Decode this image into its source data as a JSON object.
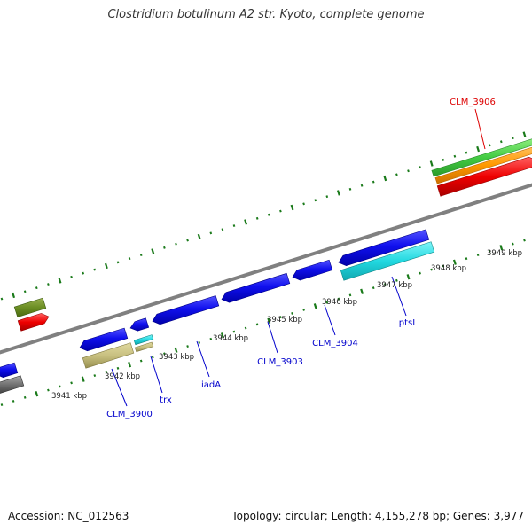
{
  "title": "Clostridium botulinum A2 str. Kyoto, complete genome",
  "footer": {
    "accession": "Accession: NC_012563",
    "summary": "Topology: circular; Length: 4,155,278 bp; Genes: 3,977"
  },
  "colors": {
    "backbone": "#808080",
    "tick": "#1a7a1a",
    "cds": "#0000ee",
    "label_blue": "#0000cc",
    "label_red": "#dd0000",
    "trna": "#00e5ee",
    "other_feature": "#c8c080",
    "gene_red": "#ee0000",
    "gene_green": "#44cc44",
    "gene_orange": "#ff9900",
    "gene_olive": "#6b8e23",
    "gene_gray": "#707070"
  },
  "scale_labels": [
    "3941 kbp",
    "3942 kbp",
    "3943 kbp",
    "3944 kbp",
    "3945 kbp",
    "3946 kbp",
    "3947 kbp",
    "3948 kbp",
    "3949 kbp"
  ],
  "gene_labels": {
    "clm3900": "CLM_3900",
    "trx": "trx",
    "iadA": "iadA",
    "clm3903": "CLM_3903",
    "clm3904": "CLM_3904",
    "ptsI": "ptsI",
    "clm3906": "CLM_3906"
  }
}
